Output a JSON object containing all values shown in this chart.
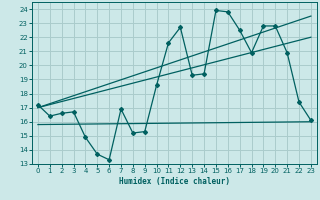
{
  "xlabel": "Humidex (Indice chaleur)",
  "ylabel": "",
  "bg_color": "#cce8e8",
  "grid_color": "#aacccc",
  "line_color": "#006060",
  "xlim": [
    -0.5,
    23.5
  ],
  "ylim": [
    13,
    24.5
  ],
  "yticks": [
    13,
    14,
    15,
    16,
    17,
    18,
    19,
    20,
    21,
    22,
    23,
    24
  ],
  "xticks": [
    0,
    1,
    2,
    3,
    4,
    5,
    6,
    7,
    8,
    9,
    10,
    11,
    12,
    13,
    14,
    15,
    16,
    17,
    18,
    19,
    20,
    21,
    22,
    23
  ],
  "line1_x": [
    0,
    1,
    2,
    3,
    4,
    5,
    6,
    7,
    8,
    9,
    10,
    11,
    12,
    13,
    14,
    15,
    16,
    17,
    18,
    19,
    20,
    21,
    22,
    23
  ],
  "line1_y": [
    17.2,
    16.4,
    16.6,
    16.7,
    14.9,
    13.7,
    13.3,
    16.9,
    15.2,
    15.3,
    18.6,
    21.6,
    22.7,
    19.3,
    19.4,
    23.9,
    23.8,
    22.5,
    20.9,
    22.8,
    22.8,
    20.9,
    17.4,
    16.1
  ],
  "line2_x": [
    0,
    23
  ],
  "line2_y": [
    15.8,
    16.0
  ],
  "line3_x": [
    0,
    23
  ],
  "line3_y": [
    17.0,
    22.0
  ],
  "line4_x": [
    0,
    23
  ],
  "line4_y": [
    17.0,
    23.5
  ]
}
